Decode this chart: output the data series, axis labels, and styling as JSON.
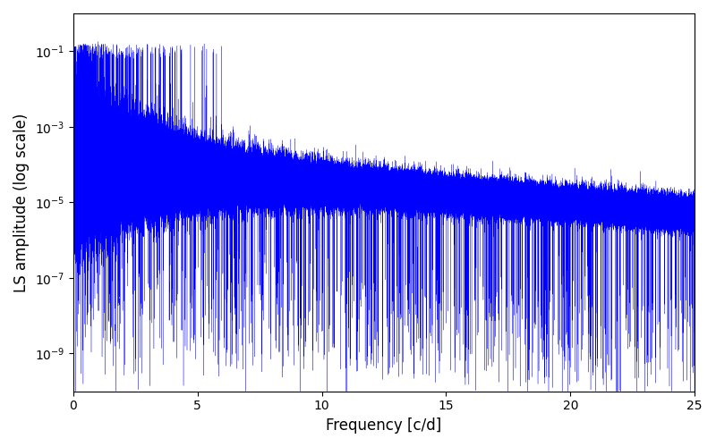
{
  "xlabel": "Frequency [c/d]",
  "ylabel": "LS amplitude (log scale)",
  "xlim": [
    0,
    25
  ],
  "ylim": [
    1e-10,
    1.0
  ],
  "line_color": "blue",
  "figsize": [
    8.0,
    5.0
  ],
  "dpi": 100,
  "freq_max": 25.0,
  "seed": 42,
  "yticks": [
    1e-09,
    1e-07,
    1e-05,
    0.001,
    0.1
  ],
  "xticks": [
    0,
    5,
    10,
    15,
    20,
    25
  ]
}
